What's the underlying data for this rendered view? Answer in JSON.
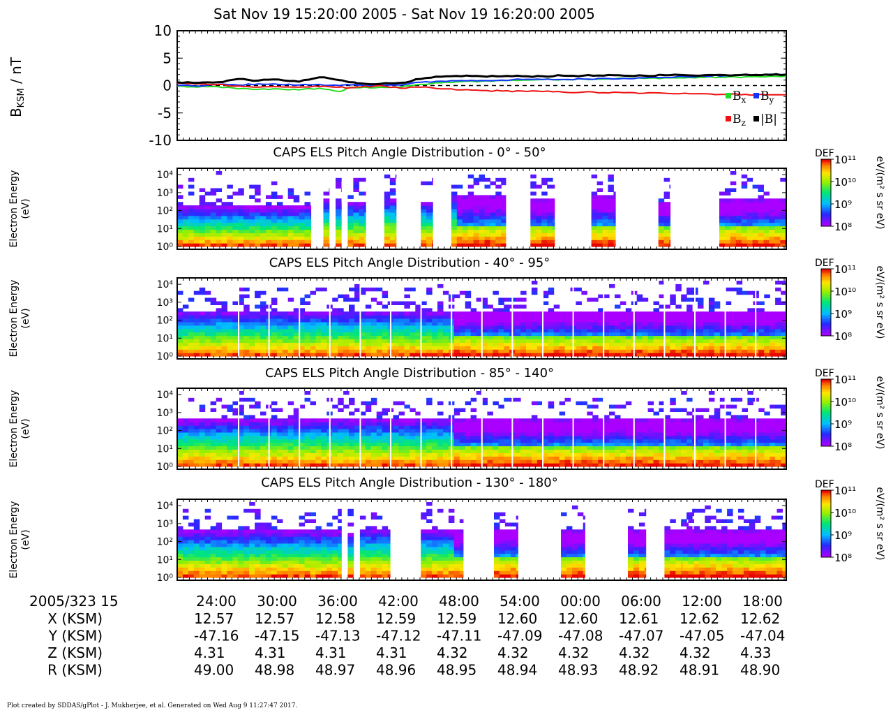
{
  "page_title": "Sat Nov 19 15:20:00 2005 - Sat Nov 19 16:20:00 2005",
  "footer": "Plot created by SDDAS/gPlot - J. Mukherjee, et al.  Generated on Wed Aug 9 11:27:47 2017.",
  "colors": {
    "bx": "#22dd22",
    "by": "#1133ff",
    "bz": "#ee1111",
    "bmag": "#000000"
  },
  "chart_data": [
    {
      "type": "line",
      "title": "",
      "ylabel": "B",
      "ylabel_sub": "KSM",
      "ylabel_unit": " / nT",
      "ylim": [
        -10,
        10
      ],
      "yticks": [
        "10",
        "5",
        "0",
        "-5",
        "-10"
      ],
      "x_minutes": [
        0,
        2,
        4,
        6,
        8,
        10,
        12,
        14,
        16,
        17,
        18,
        20,
        22,
        24,
        26,
        28,
        30,
        32,
        34,
        36,
        38,
        40,
        42,
        44,
        46,
        48,
        50,
        52,
        54,
        56,
        58,
        60
      ],
      "series": [
        {
          "name": "B",
          "sub": "x",
          "color": "#22dd22",
          "values": [
            -0.1,
            -0.3,
            -0.2,
            -0.6,
            -0.7,
            -0.6,
            -0.8,
            -0.5,
            -1.1,
            -0.4,
            -0.4,
            -0.3,
            -0.3,
            0.2,
            0.5,
            0.7,
            0.8,
            0.9,
            1.0,
            1.1,
            1.1,
            1.2,
            1.2,
            1.3,
            1.3,
            1.4,
            1.4,
            1.5,
            1.5,
            1.6,
            1.6,
            1.7
          ]
        },
        {
          "name": "B",
          "sub": "y",
          "color": "#1133ff",
          "values": [
            0.0,
            -0.1,
            0.2,
            0.1,
            0.3,
            0.2,
            0.1,
            0.2,
            0.0,
            0.1,
            0.1,
            0.0,
            0.1,
            0.6,
            0.8,
            0.9,
            0.9,
            1.0,
            1.1,
            1.1,
            1.1,
            1.2,
            1.3,
            1.3,
            1.4,
            1.5,
            1.6,
            1.7,
            1.8,
            1.9,
            2.0,
            2.0
          ]
        },
        {
          "name": "B",
          "sub": "z",
          "color": "#ee1111",
          "values": [
            0.4,
            0.3,
            0.2,
            -0.1,
            -0.3,
            -0.2,
            -0.3,
            -0.2,
            -0.3,
            -0.4,
            -0.3,
            0.0,
            -0.5,
            -0.3,
            -0.6,
            -0.8,
            -0.9,
            -1.0,
            -1.0,
            -1.1,
            -1.2,
            -1.2,
            -1.3,
            -1.3,
            -1.4,
            -1.4,
            -1.4,
            -1.5,
            -1.6,
            -1.6,
            -1.7,
            -1.7
          ]
        },
        {
          "name": "|B|",
          "sub": "",
          "color": "#000000",
          "values": [
            0.6,
            0.5,
            0.6,
            1.2,
            0.9,
            1.1,
            0.7,
            1.5,
            1.0,
            0.6,
            0.4,
            0.3,
            0.5,
            1.2,
            1.6,
            1.7,
            1.7,
            1.7,
            1.7,
            1.7,
            1.8,
            1.8,
            1.8,
            1.8,
            1.8,
            1.9,
            1.9,
            1.9,
            1.9,
            2.0,
            2.0,
            2.0
          ]
        }
      ]
    },
    {
      "type": "heatmap",
      "title": "CAPS ELS Pitch Angle Distribution - 0° - 50°",
      "ylabel": "Electron Energy",
      "yunit": "(eV)",
      "cb_title": "DEF",
      "cb_unit": "eV/(m² s sr eV)",
      "cb_ticks": [
        "10¹¹",
        "10¹⁰",
        "10⁹",
        "10⁸"
      ],
      "yticks": [
        "10⁴",
        "10³",
        "10²",
        "10¹",
        "10⁰"
      ],
      "coverage": [
        [
          0,
          22
        ],
        [
          24,
          25
        ],
        [
          26,
          27
        ],
        [
          28,
          31
        ],
        [
          34,
          36
        ],
        [
          40,
          42
        ],
        [
          45,
          54
        ],
        [
          58,
          62
        ],
        [
          68,
          72
        ],
        [
          79,
          81
        ],
        [
          89,
          100
        ]
      ],
      "hiE_log": [
        2.0,
        2.4,
        2.3,
        2.3,
        2.5,
        2.3,
        2.6,
        2.4,
        2.6,
        2.3,
        2.4
      ]
    },
    {
      "type": "heatmap",
      "title": "CAPS ELS Pitch Angle Distribution - 40° - 95°",
      "ylabel": "Electron Energy",
      "yunit": "(eV)",
      "cb_title": "DEF",
      "cb_unit": "eV/(m² s sr eV)",
      "cb_ticks": [
        "10¹¹",
        "10¹⁰",
        "10⁹",
        "10⁸"
      ],
      "yticks": [
        "10⁴",
        "10³",
        "10²",
        "10¹",
        "10⁰"
      ],
      "coverage": [
        [
          0,
          100
        ]
      ],
      "hiE_log": [
        2.3
      ]
    },
    {
      "type": "heatmap",
      "title": "CAPS ELS Pitch Angle Distribution - 85° - 140°",
      "ylabel": "Electron Energy",
      "yunit": "(eV)",
      "cb_title": "DEF",
      "cb_unit": "eV/(m² s sr eV)",
      "cb_ticks": [
        "10¹¹",
        "10¹⁰",
        "10⁹",
        "10⁸"
      ],
      "yticks": [
        "10⁴",
        "10³",
        "10²",
        "10¹",
        "10⁰"
      ],
      "coverage": [
        [
          0,
          100
        ]
      ],
      "hiE_log": [
        2.4
      ]
    },
    {
      "type": "heatmap",
      "title": "CAPS ELS Pitch Angle Distribution - 130° - 180°",
      "ylabel": "Electron Energy",
      "yunit": "(eV)",
      "cb_title": "DEF",
      "cb_unit": "eV/(m² s sr eV)",
      "cb_ticks": [
        "10¹¹",
        "10¹⁰",
        "10⁹",
        "10⁸"
      ],
      "yticks": [
        "10⁴",
        "10³",
        "10²",
        "10¹",
        "10⁰"
      ],
      "coverage": [
        [
          0,
          27
        ],
        [
          28,
          29
        ],
        [
          30,
          35
        ],
        [
          40,
          47
        ],
        [
          52,
          56
        ],
        [
          63,
          67
        ],
        [
          74,
          77
        ],
        [
          80,
          85
        ],
        [
          83,
          100
        ]
      ],
      "hiE_log": [
        2.4,
        2.3,
        2.5,
        2.4,
        2.5,
        2.4,
        2.4,
        2.4,
        2.4
      ]
    }
  ],
  "x_axis": {
    "date_label": "2005/323 15",
    "ticks": [
      "24:00",
      "30:00",
      "36:00",
      "42:00",
      "48:00",
      "54:00",
      "00:00",
      "06:00",
      "12:00",
      "18:00"
    ],
    "rows": [
      {
        "label": "X (KSM)",
        "values": [
          "12.57",
          "12.57",
          "12.58",
          "12.59",
          "12.59",
          "12.60",
          "12.60",
          "12.61",
          "12.62",
          "12.62"
        ]
      },
      {
        "label": "Y (KSM)",
        "values": [
          "-47.16",
          "-47.15",
          "-47.13",
          "-47.12",
          "-47.11",
          "-47.09",
          "-47.08",
          "-47.07",
          "-47.05",
          "-47.04"
        ]
      },
      {
        "label": "Z (KSM)",
        "values": [
          "4.31",
          "4.31",
          "4.31",
          "4.31",
          "4.32",
          "4.32",
          "4.32",
          "4.32",
          "4.32",
          "4.33"
        ]
      },
      {
        "label": "R (KSM)",
        "values": [
          "49.00",
          "48.98",
          "48.97",
          "48.96",
          "48.95",
          "48.94",
          "48.93",
          "48.92",
          "48.91",
          "48.90"
        ]
      }
    ]
  }
}
